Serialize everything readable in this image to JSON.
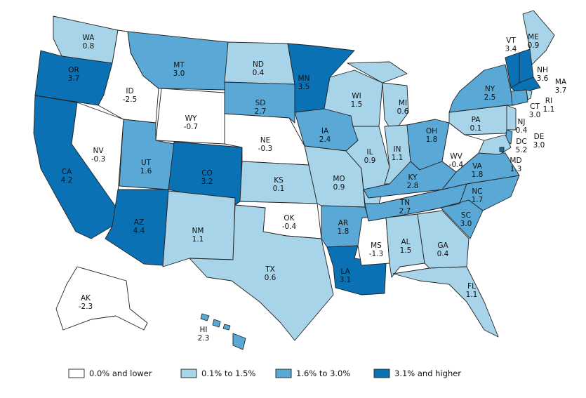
{
  "colors": {
    "bin0": "#ffffff",
    "bin1": "#a8d4ea",
    "bin2": "#5aa8d6",
    "bin3": "#0a71b4"
  },
  "legend": [
    {
      "label": "0.0% and lower",
      "bin": "bin0"
    },
    {
      "label": "0.1% to 1.5%",
      "bin": "bin1"
    },
    {
      "label": "1.6% to 3.0%",
      "bin": "bin2"
    },
    {
      "label": "3.1% and higher",
      "bin": "bin3"
    }
  ],
  "states": [
    {
      "abbr": "WA",
      "value": "0.8"
    },
    {
      "abbr": "OR",
      "value": "3.7"
    },
    {
      "abbr": "CA",
      "value": "4.2"
    },
    {
      "abbr": "ID",
      "value": "-2.5"
    },
    {
      "abbr": "NV",
      "value": "-0.3"
    },
    {
      "abbr": "MT",
      "value": "3.0"
    },
    {
      "abbr": "WY",
      "value": "-0.7"
    },
    {
      "abbr": "UT",
      "value": "1.6"
    },
    {
      "abbr": "AZ",
      "value": "4.4"
    },
    {
      "abbr": "CO",
      "value": "3.2"
    },
    {
      "abbr": "NM",
      "value": "1.1"
    },
    {
      "abbr": "ND",
      "value": "0.4"
    },
    {
      "abbr": "SD",
      "value": "2.7"
    },
    {
      "abbr": "NE",
      "value": "-0.3"
    },
    {
      "abbr": "KS",
      "value": "0.1"
    },
    {
      "abbr": "OK",
      "value": "-0.4"
    },
    {
      "abbr": "TX",
      "value": "0.6"
    },
    {
      "abbr": "MN",
      "value": "3.5"
    },
    {
      "abbr": "IA",
      "value": "2.4"
    },
    {
      "abbr": "MO",
      "value": "0.9"
    },
    {
      "abbr": "AR",
      "value": "1.8"
    },
    {
      "abbr": "LA",
      "value": "3.1"
    },
    {
      "abbr": "WI",
      "value": "1.5"
    },
    {
      "abbr": "IL",
      "value": "0.9"
    },
    {
      "abbr": "MS",
      "value": "-1.3"
    },
    {
      "abbr": "MI",
      "value": "0.6"
    },
    {
      "abbr": "IN",
      "value": "1.1"
    },
    {
      "abbr": "OH",
      "value": "1.8"
    },
    {
      "abbr": "KY",
      "value": "2.8"
    },
    {
      "abbr": "TN",
      "value": "2.7"
    },
    {
      "abbr": "AL",
      "value": "1.5"
    },
    {
      "abbr": "GA",
      "value": "0.4"
    },
    {
      "abbr": "FL",
      "value": "1.1"
    },
    {
      "abbr": "SC",
      "value": "3.0"
    },
    {
      "abbr": "NC",
      "value": "1.7"
    },
    {
      "abbr": "VA",
      "value": "1.8"
    },
    {
      "abbr": "WV",
      "value": "-0.4"
    },
    {
      "abbr": "PA",
      "value": "0.1"
    },
    {
      "abbr": "NY",
      "value": "2.5"
    },
    {
      "abbr": "VT",
      "value": "3.4"
    },
    {
      "abbr": "ME",
      "value": "0.9"
    },
    {
      "abbr": "NH",
      "value": "3.6"
    },
    {
      "abbr": "MA",
      "value": "3.7"
    },
    {
      "abbr": "RI",
      "value": "1.1"
    },
    {
      "abbr": "CT",
      "value": "3.0"
    },
    {
      "abbr": "NJ",
      "value": "0.4"
    },
    {
      "abbr": "DE",
      "value": "3.0"
    },
    {
      "abbr": "MD",
      "value": "1.3"
    },
    {
      "abbr": "DC",
      "value": "5.2"
    },
    {
      "abbr": "AK",
      "value": "-2.3"
    },
    {
      "abbr": "HI",
      "value": "2.3"
    }
  ]
}
